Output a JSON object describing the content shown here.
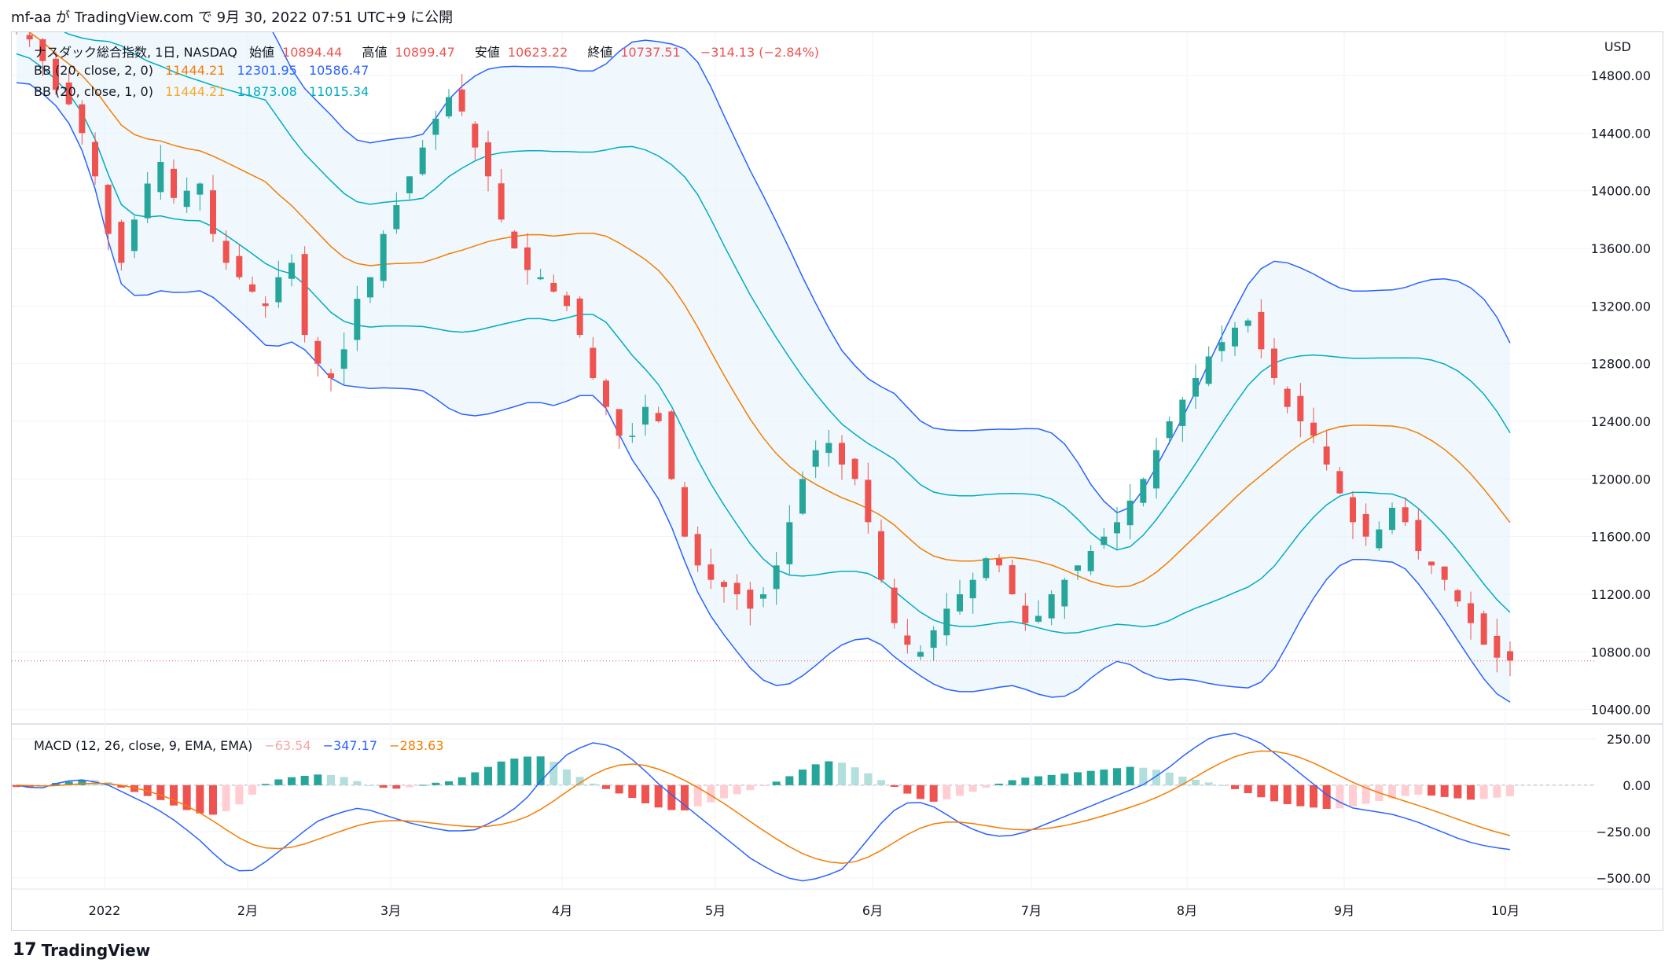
{
  "header": {
    "publish_text": "mf-aa が TradingView.com で 9月 30, 2022 07:51 UTC+9 に公開"
  },
  "legend": {
    "main": {
      "symbol": "ナスダック総合指数, 1日, NASDAQ",
      "open_label": "始値",
      "open": "10894.44",
      "high_label": "高値",
      "high": "10899.47",
      "low_label": "安値",
      "low": "10623.22",
      "close_label": "終値",
      "close": "10737.51",
      "change": "−314.13 (−2.84%)"
    },
    "bb2": {
      "label": "BB (20, close, 2, 0)",
      "basis": "11444.21",
      "upper": "12301.95",
      "lower": "10586.47"
    },
    "bb1": {
      "label": "BB (20, close, 1, 0)",
      "basis": "11444.21",
      "upper": "11873.08",
      "lower": "11015.34"
    },
    "macd": {
      "label": "MACD (12, 26, close, 9, EMA, EMA)",
      "hist": "−63.54",
      "macd": "−347.17",
      "signal": "−283.63"
    }
  },
  "axis": {
    "currency": "USD",
    "price_ticks": [
      "14800.00",
      "14400.00",
      "14000.00",
      "13600.00",
      "13200.00",
      "12800.00",
      "12400.00",
      "12000.00",
      "11600.00",
      "11200.00",
      "10800.00",
      "10400.00"
    ],
    "macd_ticks": [
      "250.00",
      "0.00",
      "−250.00",
      "−500.00"
    ],
    "time_ticks": [
      "2022",
      "2月",
      "3月",
      "4月",
      "5月",
      "6月",
      "7月",
      "8月",
      "9月",
      "10月"
    ]
  },
  "footer": {
    "brand": "TradingView"
  },
  "colors": {
    "up": "#26a69a",
    "down": "#ef5350",
    "basis": "#f57c00",
    "bb2": "#2962ff",
    "bb1": "#00acc1",
    "fill": "#e3f2fd",
    "macd": "#2962ff",
    "signal": "#f57c00"
  },
  "chart_data": {
    "type": "candlestick",
    "title": "ナスダック総合指数, 1日, NASDAQ",
    "ylabel": "USD",
    "ylim": [
      10300,
      15100
    ],
    "macd_ylim": [
      -560,
      330
    ],
    "dates": [
      "2021-12-20",
      "2022-01-03",
      "2022-02-01",
      "2022-03-01",
      "2022-04-01",
      "2022-05-02",
      "2022-06-01",
      "2022-07-01",
      "2022-08-01",
      "2022-09-01",
      "2022-09-29"
    ],
    "close_path": [
      15150,
      15050,
      14900,
      14700,
      14600,
      14400,
      14100,
      13700,
      13500,
      13800,
      14050,
      14200,
      13950,
      14000,
      14050,
      13700,
      13500,
      13400,
      13300,
      13200,
      13400,
      13500,
      13000,
      12800,
      12700,
      12900,
      13250,
      13400,
      13700,
      13900,
      14100,
      14300,
      14500,
      14650,
      14550,
      14300,
      14100,
      13800,
      13600,
      13450,
      13400,
      13300,
      13200,
      13000,
      12700,
      12500,
      12300,
      12300,
      12500,
      12400,
      12000,
      11600,
      11400,
      11300,
      11250,
      11200,
      11100,
      11200,
      11400,
      11700,
      12000,
      12200,
      12250,
      12100,
      12000,
      11700,
      11300,
      11000,
      10850,
      10800,
      10950,
      11100,
      11200,
      11300,
      11450,
      11400,
      11200,
      11000,
      11050,
      11200,
      11300,
      11400,
      11500,
      11600,
      11700,
      11850,
      12000,
      12200,
      12400,
      12550,
      12700,
      12850,
      12950,
      13050,
      13100,
      12900,
      12700,
      12500,
      12400,
      12300,
      12100,
      11900,
      11700,
      11600,
      11650,
      11800,
      11700,
      11500,
      11400,
      11300,
      11150,
      11000,
      10850,
      10760,
      10740
    ],
    "macd_hist_path": [
      -10,
      -15,
      10,
      20,
      30,
      20,
      -20,
      -50,
      -80,
      -120,
      -150,
      -160,
      -130,
      -60,
      20,
      40,
      50,
      60,
      50,
      20,
      -10,
      -20,
      -10,
      10,
      20,
      50,
      90,
      130,
      150,
      160,
      120,
      60,
      10,
      -30,
      -60,
      -100,
      -130,
      -140,
      -110,
      -80,
      -50,
      -20,
      10,
      50,
      100,
      130,
      120,
      80,
      30,
      -20,
      -70,
      -90,
      -70,
      -40,
      -10,
      20,
      40,
      50,
      60,
      70,
      80,
      90,
      100,
      90,
      70,
      40,
      20,
      0,
      -30,
      -60,
      -90,
      -110,
      -120,
      -130,
      -120,
      -100,
      -80,
      -60,
      -50,
      -60,
      -70,
      -80,
      -70,
      -60
    ],
    "macd_line_path": [
      0,
      -20,
      20,
      30,
      0,
      -60,
      -120,
      -200,
      -300,
      -420,
      -480,
      -400,
      -300,
      -200,
      -150,
      -120,
      -160,
      -200,
      -230,
      -250,
      -240,
      -180,
      -100,
      50,
      170,
      230,
      210,
      120,
      0,
      -100,
      -200,
      -300,
      -400,
      -470,
      -520,
      -500,
      -450,
      -300,
      -150,
      -80,
      -120,
      -200,
      -260,
      -280,
      -250,
      -200,
      -150,
      -100,
      -50,
      0,
      80,
      180,
      260,
      280,
      240,
      150,
      50,
      -50,
      -120,
      -140,
      -160,
      -200,
      -250,
      -300,
      -330,
      -347
    ]
  }
}
